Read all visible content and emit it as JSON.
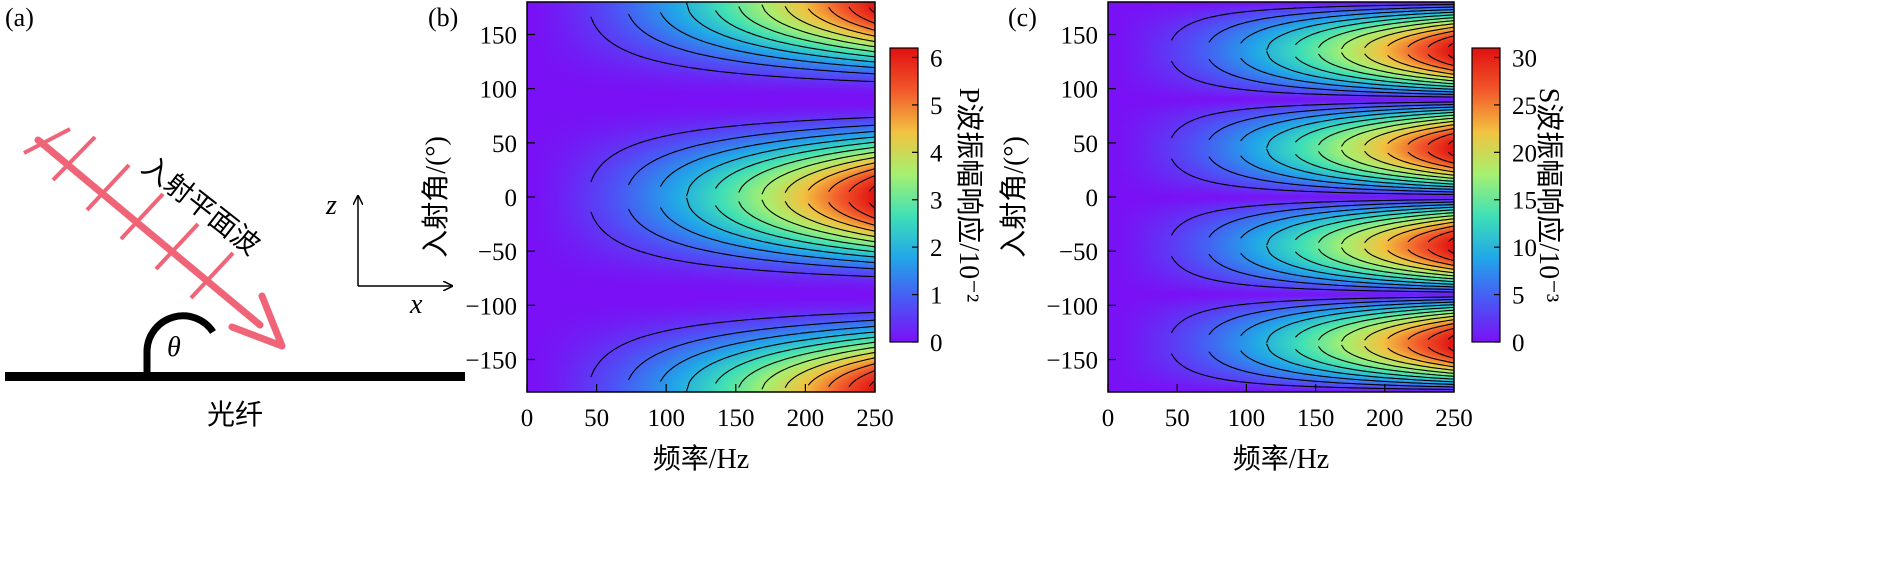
{
  "panel_a": {
    "label": "(a)",
    "wave_label": "入射平面波",
    "fiber_label": "光纤",
    "angle_symbol": "θ",
    "axis_z": "z",
    "axis_x": "x",
    "colors": {
      "wave": "#f06478",
      "fiber": "#000000"
    }
  },
  "chart_data": [
    {
      "panel": "(b)",
      "type": "heatmap",
      "title": "",
      "xlabel": "频率/Hz",
      "ylabel": "入射角/(°)",
      "xlim": [
        0,
        250
      ],
      "ylim": [
        -180,
        180
      ],
      "xticks": [
        0,
        50,
        100,
        150,
        200,
        250
      ],
      "yticks": [
        150,
        100,
        50,
        0,
        -50,
        -100,
        -150
      ],
      "x_tick_labels": [
        "0",
        "50",
        "100",
        "150",
        "200",
        "250"
      ],
      "y_tick_labels": [
        "150",
        "100",
        "50",
        "0",
        "−50",
        "−100",
        "−150"
      ],
      "colorbar": {
        "label": "P波振幅响应/10⁻²",
        "ticks": [
          0,
          1,
          2,
          3,
          4,
          5,
          6
        ],
        "tick_labels": [
          "0",
          "1",
          "2",
          "3",
          "4",
          "5",
          "6"
        ],
        "range": [
          0,
          6.2
        ]
      },
      "max_value": 6.2,
      "angular_pattern": "cos^2(angle)",
      "contour_levels": [
        0.5,
        1,
        1.5,
        2,
        2.5,
        3,
        3.5,
        4,
        4.5,
        5,
        5.5,
        6
      ],
      "colormap": [
        "#7a10f5",
        "#4a58f5",
        "#21a6e8",
        "#3fe0b6",
        "#a6f070",
        "#f2c240",
        "#f2572b",
        "#e01010"
      ]
    },
    {
      "panel": "(c)",
      "type": "heatmap",
      "title": "",
      "xlabel": "频率/Hz",
      "ylabel": "入射角/(°)",
      "xlim": [
        0,
        250
      ],
      "ylim": [
        -180,
        180
      ],
      "xticks": [
        0,
        50,
        100,
        150,
        200,
        250
      ],
      "yticks": [
        150,
        100,
        50,
        0,
        -50,
        -100,
        -150
      ],
      "x_tick_labels": [
        "0",
        "50",
        "100",
        "150",
        "200",
        "250"
      ],
      "y_tick_labels": [
        "150",
        "100",
        "50",
        "0",
        "−50",
        "−100",
        "−150"
      ],
      "colorbar": {
        "label": "S波振幅响应/10⁻³",
        "ticks": [
          0,
          5,
          10,
          15,
          20,
          25,
          30
        ],
        "tick_labels": [
          "0",
          "5",
          "10",
          "15",
          "20",
          "25",
          "30"
        ],
        "range": [
          0,
          31
        ]
      },
      "max_value": 31,
      "angular_pattern": "|sin(2*angle)|",
      "contour_levels": [
        2.5,
        5,
        7.5,
        10,
        12.5,
        15,
        17.5,
        20,
        22.5,
        25,
        27.5,
        30
      ],
      "colormap": [
        "#7a10f5",
        "#4a58f5",
        "#21a6e8",
        "#3fe0b6",
        "#a6f070",
        "#f2c240",
        "#f2572b",
        "#e01010"
      ]
    }
  ]
}
